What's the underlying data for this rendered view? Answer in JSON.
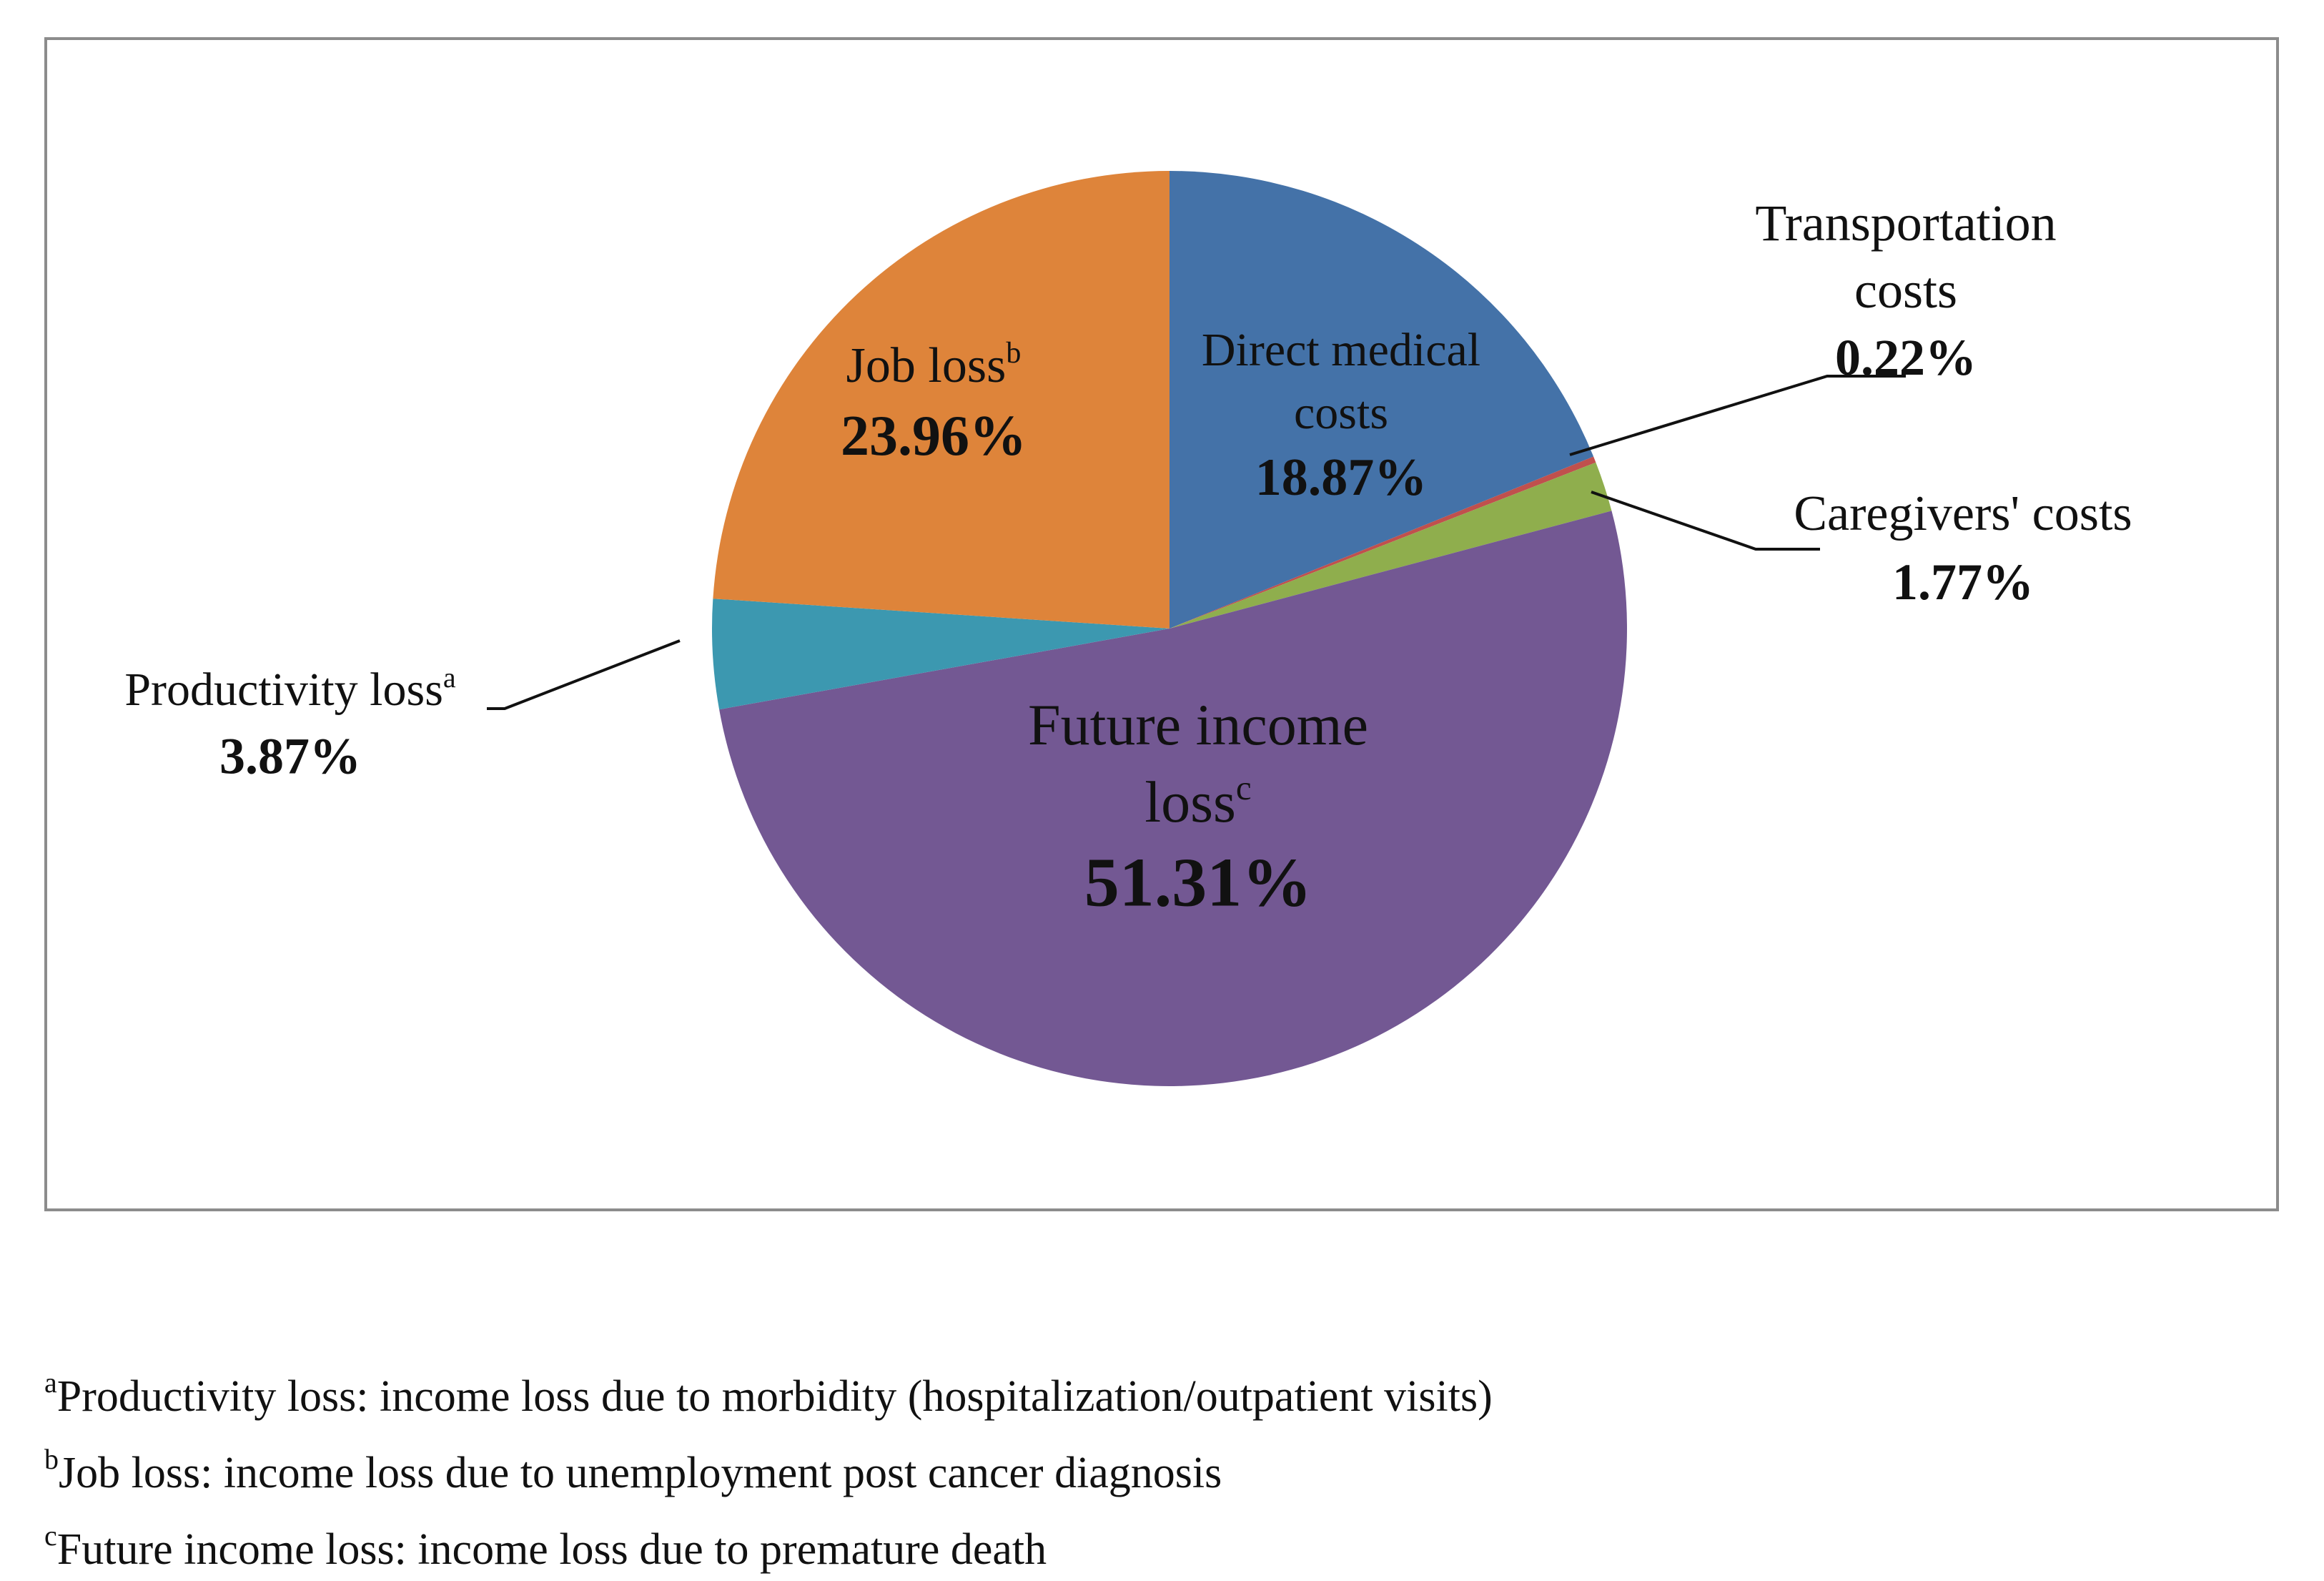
{
  "chart_data": {
    "type": "pie",
    "title": "",
    "slices": [
      {
        "label": "Direct medical costs",
        "label_lines": [
          "Direct medical",
          "costs"
        ],
        "value_label": "18.87%",
        "value": 18.87,
        "color": "#4472a8",
        "superscript": ""
      },
      {
        "label": "Transportation costs",
        "label_lines": [
          "Transportation",
          "costs"
        ],
        "value_label": "0.22%",
        "value": 0.22,
        "color": "#c0504d",
        "superscript": ""
      },
      {
        "label": "Caregivers' costs",
        "label_lines": [
          "Caregivers' costs"
        ],
        "value_label": "1.77%",
        "value": 1.77,
        "color": "#8fae4d",
        "superscript": ""
      },
      {
        "label": "Future income loss",
        "label_lines": [
          "Future income",
          "loss"
        ],
        "value_label": "51.31%",
        "value": 51.31,
        "color": "#735893",
        "superscript": "c"
      },
      {
        "label": "Productivity loss",
        "label_lines": [
          "Productivity loss"
        ],
        "value_label": "3.87%",
        "value": 3.87,
        "color": "#3c98b0",
        "superscript": "a"
      },
      {
        "label": "Job loss",
        "label_lines": [
          "Job loss"
        ],
        "value_label": "23.96%",
        "value": 23.96,
        "color": "#de843a",
        "superscript": "b"
      }
    ]
  },
  "footnotes": [
    {
      "mark": "a",
      "text": "Productivity loss: income loss due to morbidity (hospitalization/outpatient visits)"
    },
    {
      "mark": "b",
      "text": "Job loss: income loss due to unemployment post cancer diagnosis"
    },
    {
      "mark": "c",
      "text": "Future income loss: income loss due to premature death"
    }
  ]
}
